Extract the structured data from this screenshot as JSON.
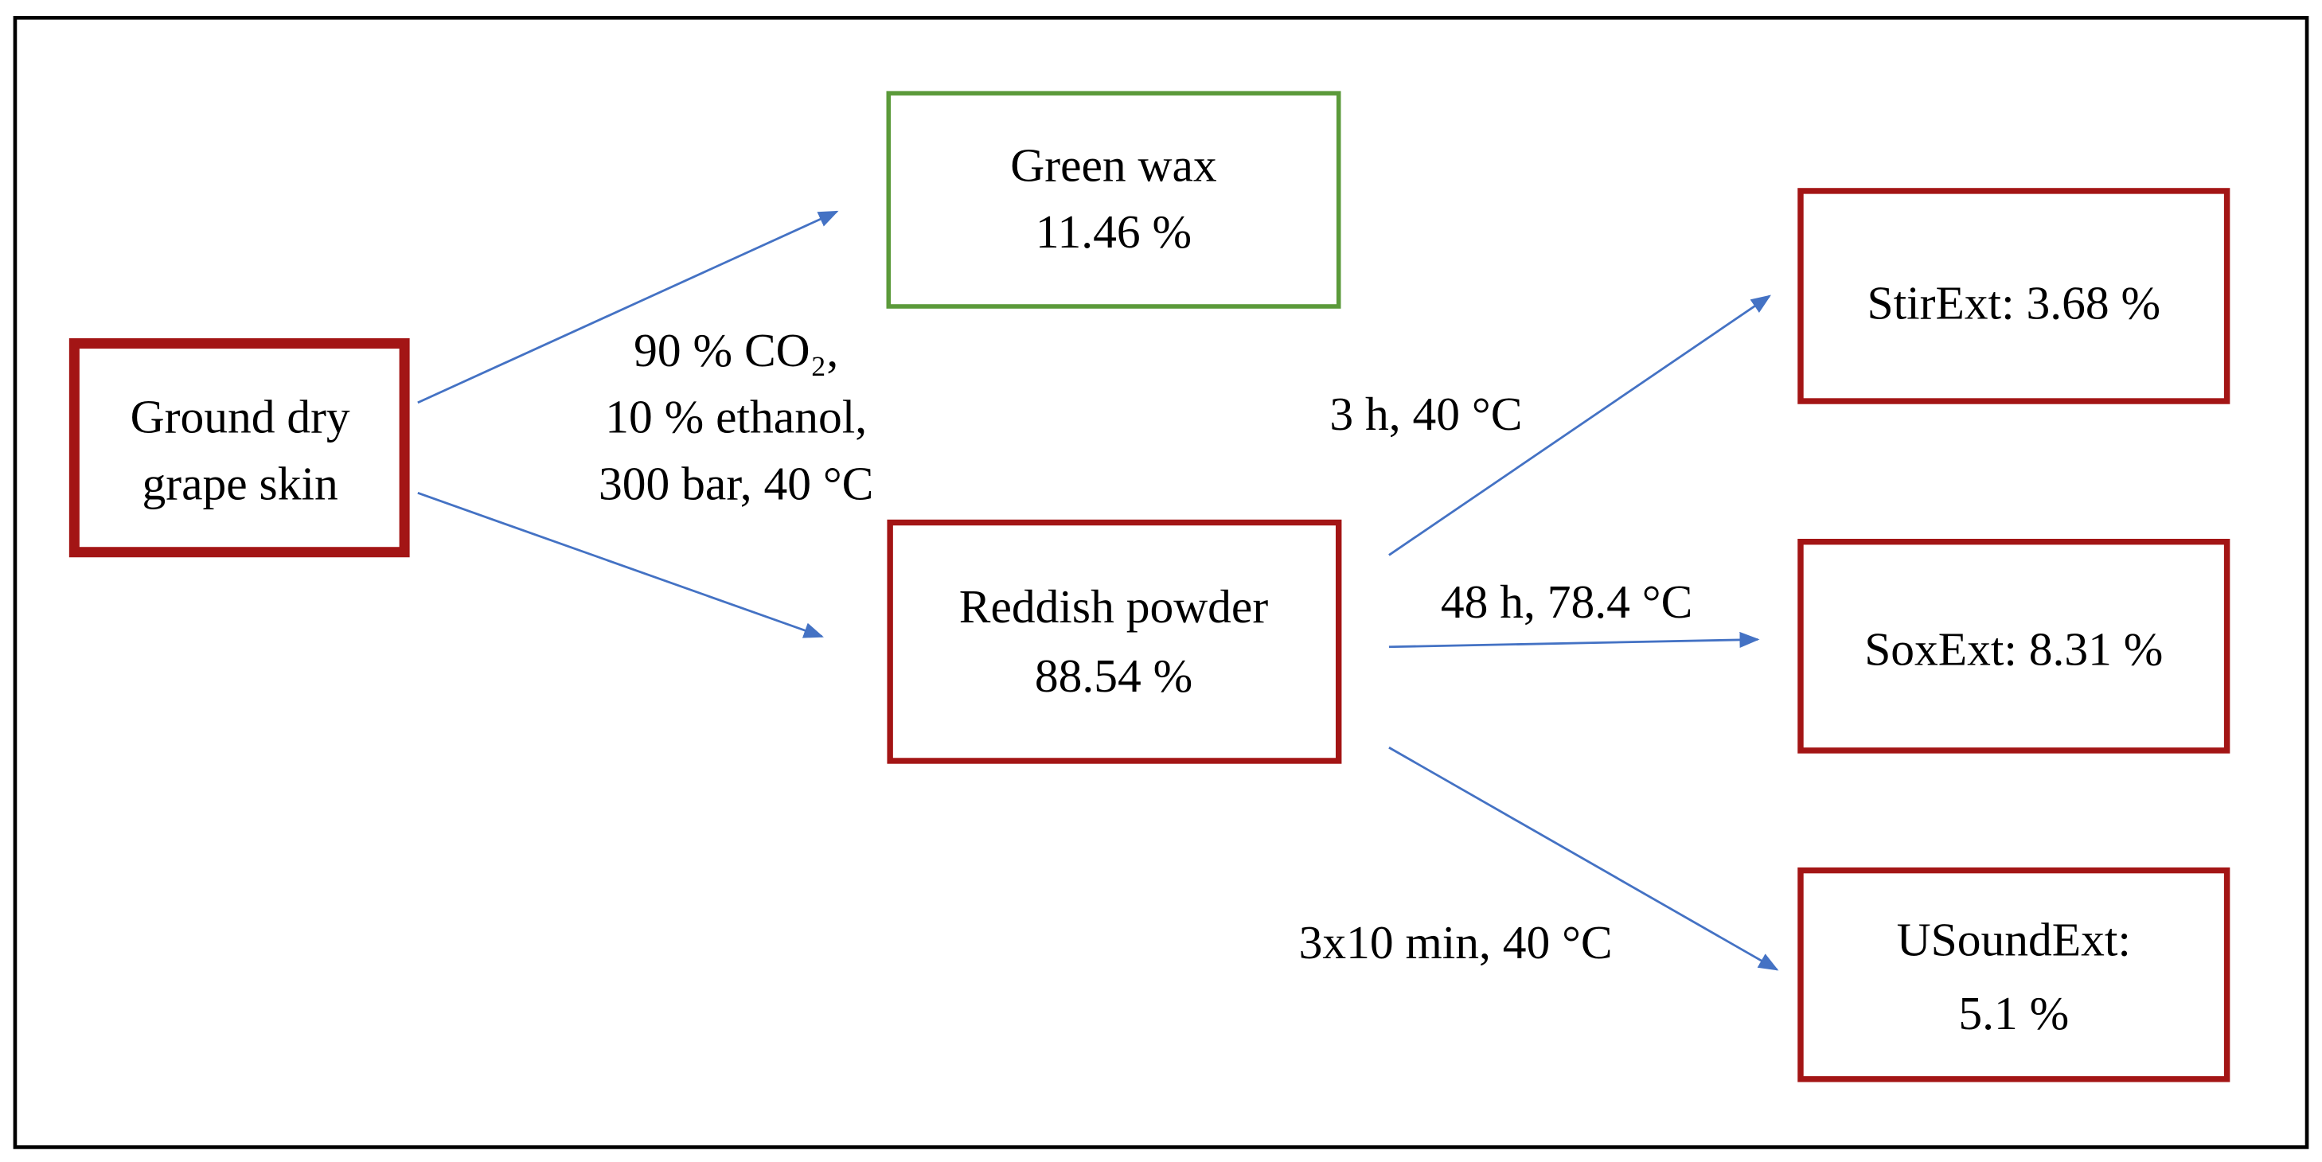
{
  "nodes": [
    {
      "lines": [
        "Ground dry",
        "grape skin"
      ]
    },
    {
      "lines": [
        "Green wax",
        "11.46 %"
      ]
    },
    {
      "lines": [
        "Reddish powder",
        "88.54 %"
      ]
    },
    {
      "lines": [
        "StirExt: 3.68 %"
      ]
    },
    {
      "lines": [
        "SoxExt: 8.31 %"
      ]
    },
    {
      "lines": [
        "USoundExt:",
        "5.1 %"
      ]
    }
  ],
  "edge_labels": [
    {
      "lines": [
        "90 % CO₂,",
        "10 % ethanol,",
        "300 bar, 40 °C"
      ]
    },
    {
      "lines": [
        "3 h, 40 °C"
      ]
    },
    {
      "lines": [
        "48 h, 78.4 °C"
      ]
    },
    {
      "lines": [
        "3x10 min, 40 °C"
      ]
    }
  ]
}
